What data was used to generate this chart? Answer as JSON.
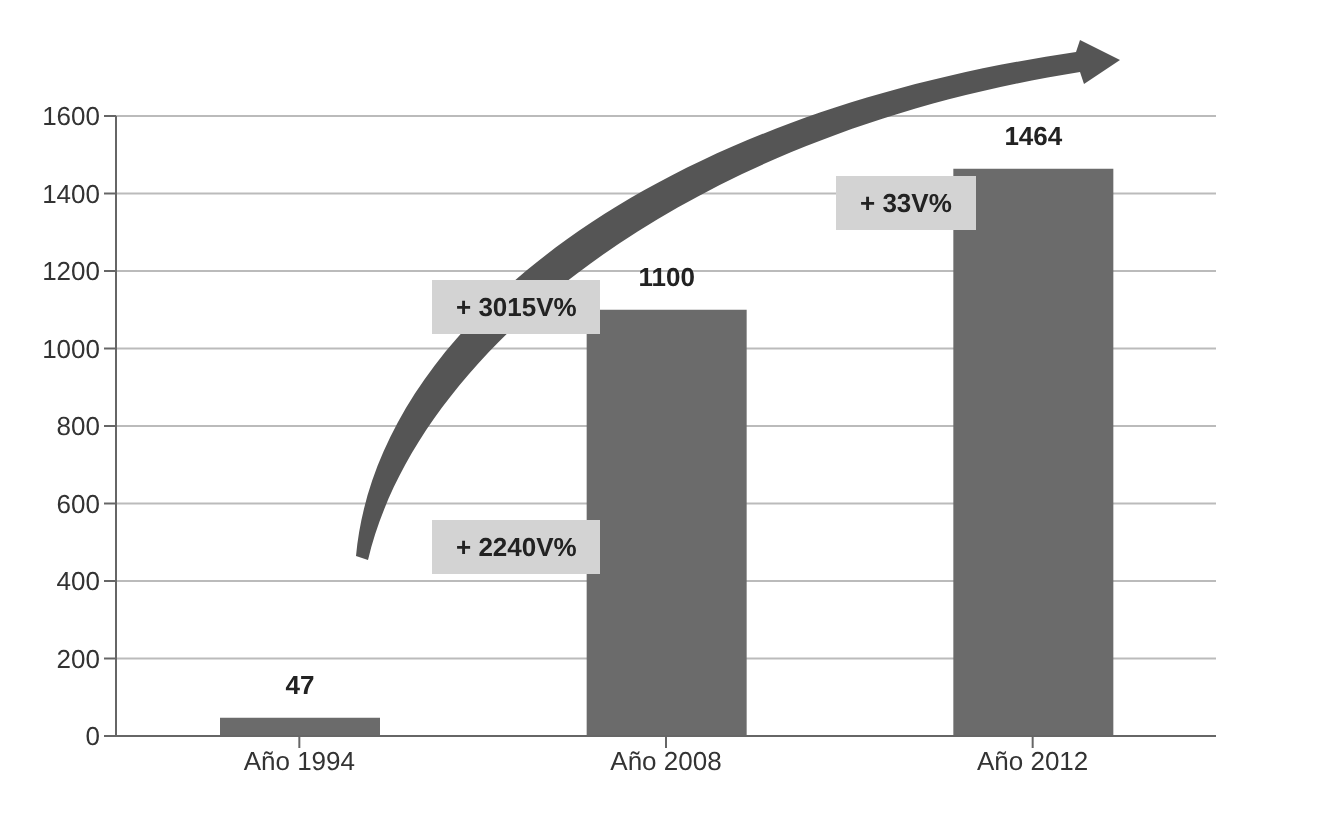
{
  "chart_data": {
    "type": "bar",
    "categories": [
      "Año 1994",
      "Año 2008",
      "Año 2012"
    ],
    "values": [
      47,
      1100,
      1464
    ],
    "color": "#6b6b6b",
    "ylim": [
      0,
      1600
    ],
    "yticks": [
      0,
      200,
      400,
      600,
      800,
      1000,
      1200,
      1400,
      1600
    ],
    "grid": "y",
    "data_labels": true,
    "annotations": [
      "+ 2240V%",
      "+ 3015V%",
      "+ 33V%"
    ]
  }
}
